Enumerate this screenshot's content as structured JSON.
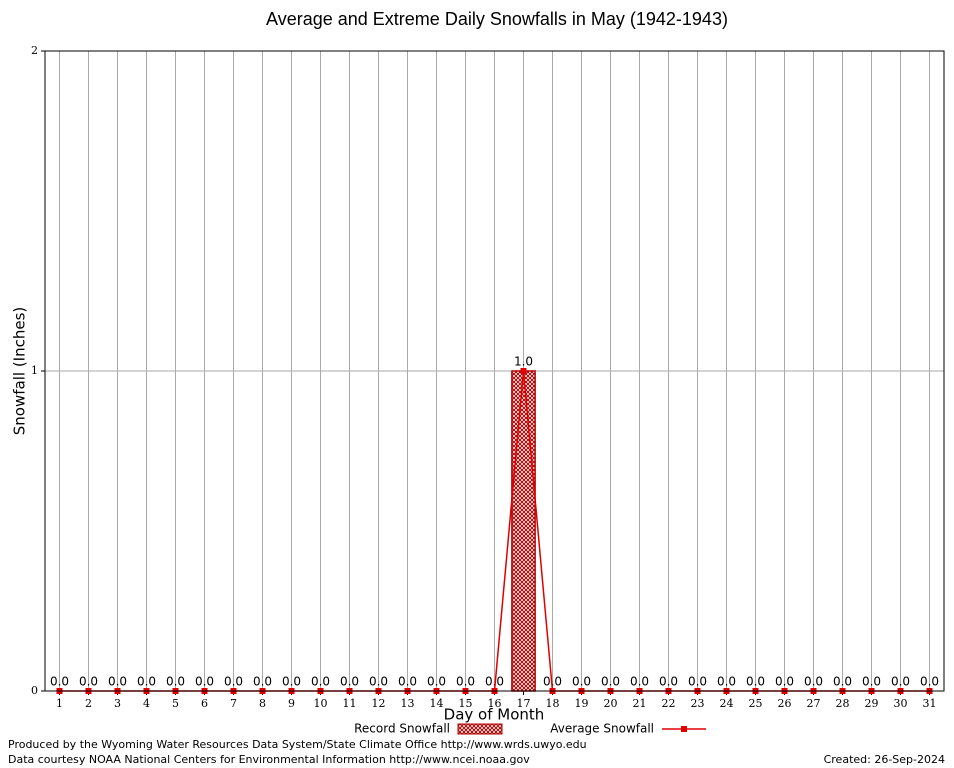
{
  "chart_data": {
    "type": "bar",
    "title": "Average and Extreme Daily Snowfalls in May (1942-1943)",
    "x_label": "Day of Month",
    "y_label": "Snowfall (Inches)",
    "x": [
      1,
      2,
      3,
      4,
      5,
      6,
      7,
      8,
      9,
      10,
      11,
      12,
      13,
      14,
      15,
      16,
      17,
      18,
      19,
      20,
      21,
      22,
      23,
      24,
      25,
      26,
      27,
      28,
      29,
      30,
      31
    ],
    "xlim": [
      0.5,
      31.5
    ],
    "ylim": [
      0,
      2
    ],
    "yticks": [
      0,
      1,
      2
    ],
    "grid": true,
    "series": [
      {
        "name": "Record Snowfall",
        "type": "bar",
        "color": "#b00000",
        "values": [
          0,
          0,
          0,
          0,
          0,
          0,
          0,
          0,
          0,
          0,
          0,
          0,
          0,
          0,
          0,
          0,
          1,
          0,
          0,
          0,
          0,
          0,
          0,
          0,
          0,
          0,
          0,
          0,
          0,
          0,
          0
        ],
        "value_labels": [
          "0.0",
          "0.0",
          "0.0",
          "0.0",
          "0.0",
          "0.0",
          "0.0",
          "0.0",
          "0.0",
          "0.0",
          "0.0",
          "0.0",
          "0.0",
          "0.0",
          "0.0",
          "0.0",
          "1.0",
          "0.0",
          "0.0",
          "0.0",
          "0.0",
          "0.0",
          "0.0",
          "0.0",
          "0.0",
          "0.0",
          "0.0",
          "0.0",
          "0.0",
          "0.0",
          "0.0"
        ]
      },
      {
        "name": "Average Snowfall",
        "type": "line",
        "color": "#e00000",
        "values": [
          0,
          0,
          0,
          0,
          0,
          0,
          0,
          0,
          0,
          0,
          0,
          0,
          0,
          0,
          0,
          0,
          1,
          0,
          0,
          0,
          0,
          0,
          0,
          0,
          0,
          0,
          0,
          0,
          0,
          0,
          0
        ]
      }
    ],
    "footer": {
      "produced_by": "Produced by the Wyoming Water Resources Data System/State Climate Office http://www.wrds.uwyo.edu",
      "data_courtesy": "Data courtesy NOAA National Centers for Environmental Information http://www.ncei.noaa.gov",
      "created": "Created: 26-Sep-2024"
    }
  }
}
